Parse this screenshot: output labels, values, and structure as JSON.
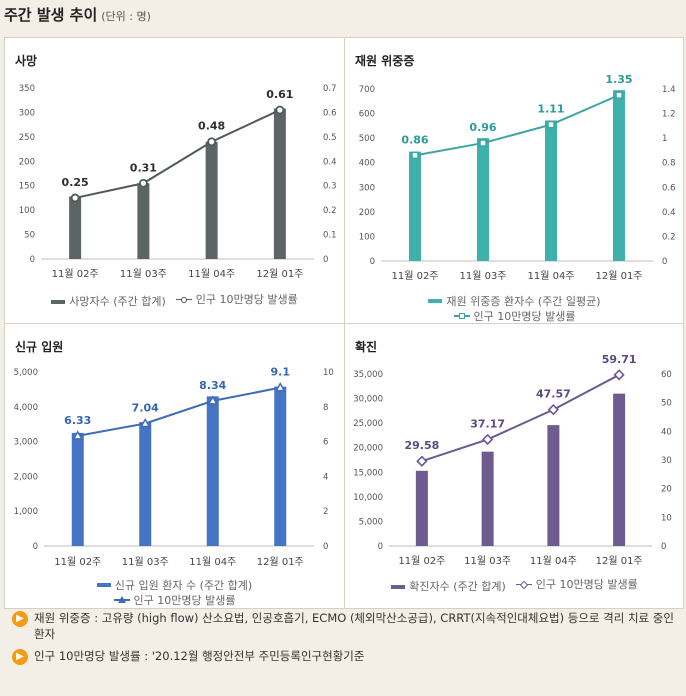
{
  "header": {
    "title": "주간 발생 추이",
    "unit": "(단위 : 명)"
  },
  "chart_data": [
    {
      "type": "bar+line",
      "title": "사망",
      "categories": [
        "11월 02주",
        "11월 03주",
        "11월 04주",
        "12월 01주"
      ],
      "bar_series": {
        "name": "사망자수 (주간 합계)",
        "values": [
          128,
          155,
          240,
          308
        ]
      },
      "line_series": {
        "name": "인구 10만명당 발생률",
        "values": [
          0.25,
          0.31,
          0.48,
          0.61
        ]
      },
      "data_labels": [
        "0.25",
        "0.31",
        "0.48",
        "0.61"
      ],
      "y_left": {
        "min": 0,
        "max": 350,
        "ticks": [
          "0",
          "50",
          "100",
          "150",
          "200",
          "250",
          "300",
          "350"
        ]
      },
      "y_right": {
        "min": 0,
        "max": 0.7,
        "ticks": [
          "0",
          "0.1",
          "0.2",
          "0.3",
          "0.4",
          "0.5",
          "0.6",
          "0.7"
        ]
      },
      "bar_color": "#5b6563",
      "line_color": "#505a58",
      "label_color": "#2f2f2f",
      "marker": "circle"
    },
    {
      "type": "bar+line",
      "title": "재원 위중증",
      "categories": [
        "11월 02주",
        "11월 03주",
        "11월 04주",
        "12월 01주"
      ],
      "bar_series": {
        "name": "재원 위중증 환자수 (주간 일평균)",
        "values": [
          445,
          500,
          572,
          695
        ]
      },
      "line_series": {
        "name": "인구 10만명당 발생률",
        "values": [
          0.86,
          0.96,
          1.11,
          1.35
        ]
      },
      "data_labels": [
        "0.86",
        "0.96",
        "1.11",
        "1.35"
      ],
      "y_left": {
        "min": 0,
        "max": 700,
        "ticks": [
          "0",
          "100",
          "200",
          "300",
          "400",
          "500",
          "600",
          "700"
        ]
      },
      "y_right": {
        "min": 0,
        "max": 1.4,
        "ticks": [
          "0",
          "0.2",
          "0.4",
          "0.6",
          "0.8",
          "1",
          "1.2",
          "1.4"
        ]
      },
      "bar_color": "#3fb1ac",
      "line_color": "#3aa6a3",
      "label_color": "#2a9c98",
      "marker": "square"
    },
    {
      "type": "bar+line",
      "title": "신규 입원",
      "categories": [
        "11월 02주",
        "11월 03주",
        "11월 04주",
        "12월 01주"
      ],
      "bar_series": {
        "name": "신규 입원 환자 수 (주간 합계)",
        "values": [
          3250,
          3560,
          4300,
          4580
        ]
      },
      "line_series": {
        "name": "인구 10만명당 발생률",
        "values": [
          6.33,
          7.04,
          8.34,
          9.1
        ]
      },
      "data_labels": [
        "6.33",
        "7.04",
        "8.34",
        "9.1"
      ],
      "y_left": {
        "min": 0,
        "max": 5000,
        "ticks": [
          "0",
          "1,000",
          "2,000",
          "3,000",
          "4,000",
          "5,000"
        ]
      },
      "y_right": {
        "min": 0,
        "max": 10,
        "ticks": [
          "0",
          "2",
          "4",
          "6",
          "8",
          "10"
        ]
      },
      "bar_color": "#4574c4",
      "line_color": "#3f6cba",
      "label_color": "#3566b5",
      "marker": "triangle"
    },
    {
      "type": "bar+line",
      "title": "확진",
      "categories": [
        "11월 02주",
        "11월 03주",
        "11월 04주",
        "12월 01주"
      ],
      "bar_series": {
        "name": "확진자수 (주간 합계)",
        "values": [
          15300,
          19200,
          24600,
          31000
        ]
      },
      "line_series": {
        "name": "인구 10만명당 발생률",
        "values": [
          29.58,
          37.17,
          47.57,
          59.71
        ]
      },
      "data_labels": [
        "29.58",
        "37.17",
        "47.57",
        "59.71"
      ],
      "y_left": {
        "min": 0,
        "max": 35000,
        "ticks": [
          "0",
          "5,000",
          "10,000",
          "15,000",
          "20,000",
          "25,000",
          "30,000",
          "35,000"
        ]
      },
      "y_right": {
        "min": 0,
        "max": 60,
        "ticks": [
          "0",
          "10",
          "20",
          "30",
          "40",
          "50",
          "60"
        ]
      },
      "bar_color": "#6e5c91",
      "line_color": "#6a5990",
      "label_color": "#5b4a84",
      "marker": "diamond"
    }
  ],
  "notes": [
    {
      "icon": "speaker-icon",
      "text": "재원 위중증 : 고유량 (high flow) 산소요법, 인공호흡기, ECMO (체외막산소공급), CRRT(지속적인대체요법) 등으로 격리 치료 중인 환자"
    },
    {
      "icon": "speaker-icon",
      "text": "인구 10만명당 발생률 : '20.12월 행정안전부 주민등록인구현황기준"
    }
  ]
}
